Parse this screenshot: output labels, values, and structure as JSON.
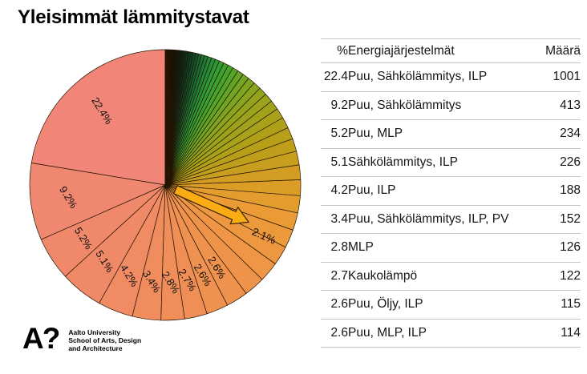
{
  "title": "Yleisimmät lämmitystavat",
  "table": {
    "headers": [
      "%",
      "Energiajärjestelmät",
      "Määrä"
    ],
    "rows": [
      [
        "22.4",
        "Puu, Sähkölämmitys, ILP",
        "1001"
      ],
      [
        "9.2",
        "Puu, Sähkölämmitys",
        "413"
      ],
      [
        "5.2",
        "Puu, MLP",
        "234"
      ],
      [
        "5.1",
        "Sähkölämmitys, ILP",
        "226"
      ],
      [
        "4.2",
        "Puu, ILP",
        "188"
      ],
      [
        "3.4",
        "Puu, Sähkölämmitys, ILP, PV",
        "152"
      ],
      [
        "2.8",
        "MLP",
        "126"
      ],
      [
        "2.7",
        "Kaukolämpö",
        "122"
      ],
      [
        "2.6",
        "Puu, Öljy, ILP",
        "115"
      ],
      [
        "2.6",
        "Puu, MLP, ILP",
        "114"
      ]
    ]
  },
  "chart_data": {
    "type": "pie",
    "title": "Yleisimmät lämmitystavat",
    "start_angle_deg": 90,
    "direction": "counterclockwise",
    "slices": [
      {
        "label": "22.4%",
        "value": 22.4
      },
      {
        "label": "9.2%",
        "value": 9.2
      },
      {
        "label": "5.2%",
        "value": 5.2
      },
      {
        "label": "5.1%",
        "value": 5.1
      },
      {
        "label": "4.2%",
        "value": 4.2
      },
      {
        "label": "3.4%",
        "value": 3.4
      },
      {
        "label": "2.8%",
        "value": 2.8
      },
      {
        "label": "2.7%",
        "value": 2.7
      },
      {
        "label": "2.6%",
        "value": 2.6
      },
      {
        "label": "2.6%",
        "value": 2.6
      }
    ],
    "unlabeled_estimated": [
      2.5,
      2.4,
      2.3,
      2.2
    ],
    "arrow_slice": {
      "label": "2.1%",
      "value": 2.1
    },
    "tail_estimated": {
      "note": "many small unlabeled categories tapering to ~0",
      "count": 50,
      "decay": 0.93
    },
    "label_radius_frac": 0.72,
    "label_rotation_deg": 58,
    "colors": {
      "slice_border": "#241403",
      "label_text": "#111111",
      "arrow_fill": "#fbac15",
      "arrow_stroke": "#332200",
      "colormap_stops": [
        [
          0.0,
          "#F2867C"
        ],
        [
          0.3,
          "#F08770"
        ],
        [
          0.45,
          "#F08B62"
        ],
        [
          0.55,
          "#EF9053"
        ],
        [
          0.62,
          "#EE9449"
        ],
        [
          0.67,
          "#ED983F"
        ],
        [
          0.71,
          "#EA9B35"
        ],
        [
          0.75,
          "#DA9D25"
        ],
        [
          0.79,
          "#C49E1C"
        ],
        [
          0.83,
          "#ADA019"
        ],
        [
          0.87,
          "#96A31C"
        ],
        [
          0.895,
          "#79A522"
        ],
        [
          0.915,
          "#50A52A"
        ],
        [
          0.935,
          "#2F9C36"
        ],
        [
          0.95,
          "#1D7F38"
        ],
        [
          0.962,
          "#12552D"
        ],
        [
          0.975,
          "#0A301D"
        ],
        [
          0.987,
          "#07150E"
        ],
        [
          1.0,
          "#040405"
        ]
      ]
    }
  },
  "logo": {
    "mark": "A?",
    "lines": [
      "Aalto University",
      "School of Arts, Design",
      "and Architecture"
    ]
  },
  "ui_colors": {
    "background": "#ffffff",
    "table_separator": "#c6c6c6",
    "table_text": "#161616",
    "title_text": "#000000"
  }
}
